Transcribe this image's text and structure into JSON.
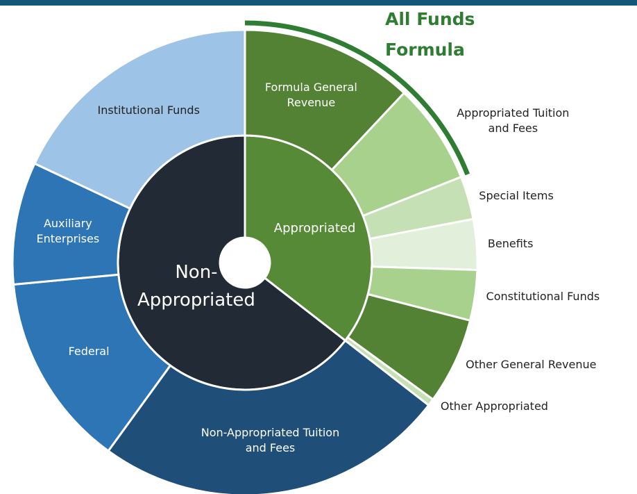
{
  "chart_data": {
    "type": "sunburst",
    "annotation": "All Funds Formula",
    "annotation_color": "#2e7d32",
    "series": [
      {
        "name": "Appropriated",
        "color": "#578a36",
        "value": 35.5,
        "children": [
          {
            "name": "Formula General Revenue",
            "color": "#548235",
            "value": 12
          },
          {
            "name": "Appropriated Tuition and Fees",
            "color": "#a9d18e",
            "value": 7
          },
          {
            "name": "Special Items",
            "color": "#c5e0b4",
            "value": 3
          },
          {
            "name": "Benefits",
            "color": "#e2efda",
            "value": 3.5
          },
          {
            "name": "Constitutional Funds",
            "color": "#a9d18e",
            "value": 3.5
          },
          {
            "name": "Other General Revenue",
            "color": "#548235",
            "value": 6
          },
          {
            "name": "Other Appropriated",
            "color": "#c5e0b4",
            "value": 0.5
          }
        ]
      },
      {
        "name": "Non-Appropriated",
        "color": "#222a35",
        "value": 64.5,
        "children": [
          {
            "name": "Non-Appropriated Tuition and Fees",
            "color": "#1f4e79",
            "value": 24.5
          },
          {
            "name": "Federal",
            "color": "#2e75b6",
            "value": 13.5
          },
          {
            "name": "Auxiliary Enterprises",
            "color": "#2e75b6",
            "value": 8.5
          },
          {
            "name": "Institutional Funds",
            "color": "#9dc3e6",
            "value": 18
          }
        ]
      }
    ]
  }
}
